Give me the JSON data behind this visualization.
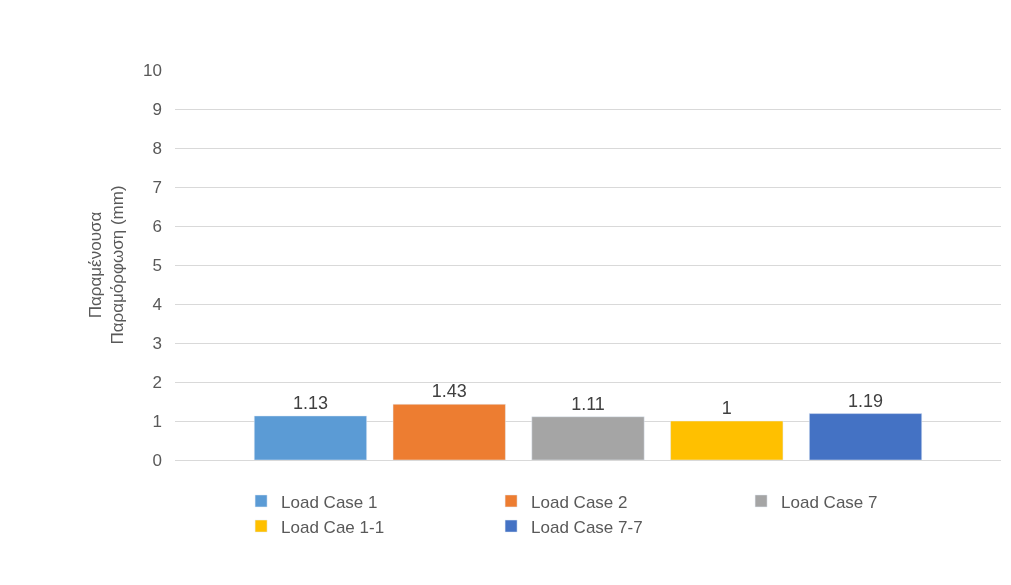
{
  "chart_data": {
    "type": "bar",
    "categories": [
      null
    ],
    "ylabel": "Παραμένουσα\nΠαραμόρφωση (mm)",
    "ylim": [
      0,
      10
    ],
    "yticks": [
      0,
      1,
      2,
      3,
      4,
      5,
      6,
      7,
      8,
      9,
      10
    ],
    "grid": "y",
    "legend": "bottom",
    "data_labels": true,
    "series": [
      {
        "name": "Load Case 1",
        "color": "#5b9bd5",
        "values": [
          1.13
        ]
      },
      {
        "name": "Load Case 2",
        "color": "#ed7d31",
        "values": [
          1.43
        ]
      },
      {
        "name": "Load Case 7",
        "color": "#a5a5a5",
        "values": [
          1.11
        ]
      },
      {
        "name": "Load Cae 1-1",
        "color": "#ffc000",
        "values": [
          1
        ]
      },
      {
        "name": "Load Case 7-7",
        "color": "#4472c4",
        "values": [
          1.19
        ]
      }
    ]
  }
}
